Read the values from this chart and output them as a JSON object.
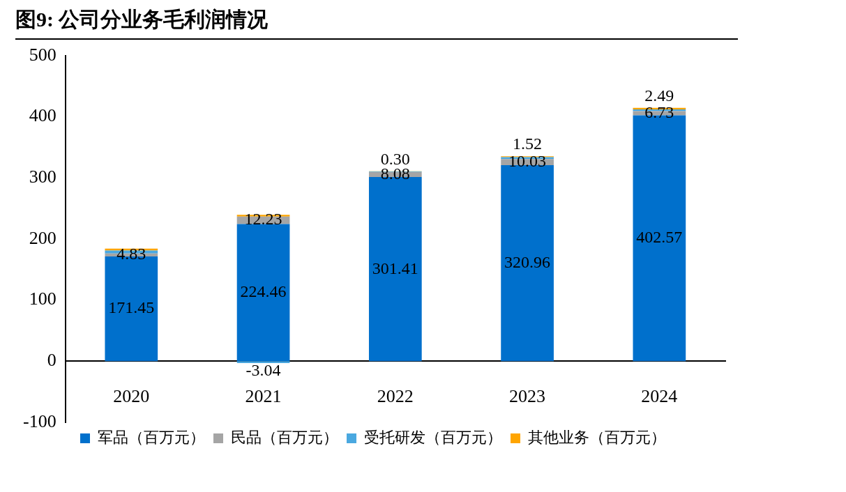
{
  "chart_data": {
    "type": "bar",
    "title": "图9:  公司分业务毛利润情况",
    "stacked": true,
    "categories": [
      "2020",
      "2021",
      "2022",
      "2023",
      "2024"
    ],
    "series": [
      {
        "name": "军品（百万元）",
        "color": "#0070cc",
        "values": [
          171.45,
          224.46,
          301.41,
          320.96,
          402.57
        ],
        "value_labels": [
          "171.45",
          "224.46",
          "301.41",
          "320.96",
          "402.57"
        ]
      },
      {
        "name": "民品（百万元）",
        "color": "#a5a5a5",
        "values": [
          4.83,
          12.23,
          8.08,
          10.03,
          6.73
        ],
        "value_labels": [
          "4.83",
          "12.23",
          "8.08",
          "10.03",
          "6.73"
        ]
      },
      {
        "name": "受托研发（百万元）",
        "color": "#4aa8e0",
        "values": [
          5,
          -3.04,
          1,
          3,
          3
        ],
        "value_labels": [
          null,
          "-3.04",
          null,
          null,
          null
        ]
      },
      {
        "name": "其他业务（百万元）",
        "color": "#ffa500",
        "values": [
          3,
          3,
          0.3,
          1.52,
          2.49
        ],
        "value_labels": [
          null,
          null,
          "0.30",
          "1.52",
          "2.49"
        ]
      }
    ],
    "ylim": [
      -100,
      500
    ],
    "yticks": [
      -100,
      0,
      100,
      200,
      300,
      400,
      500
    ],
    "grid": false,
    "legend": "bottom"
  }
}
